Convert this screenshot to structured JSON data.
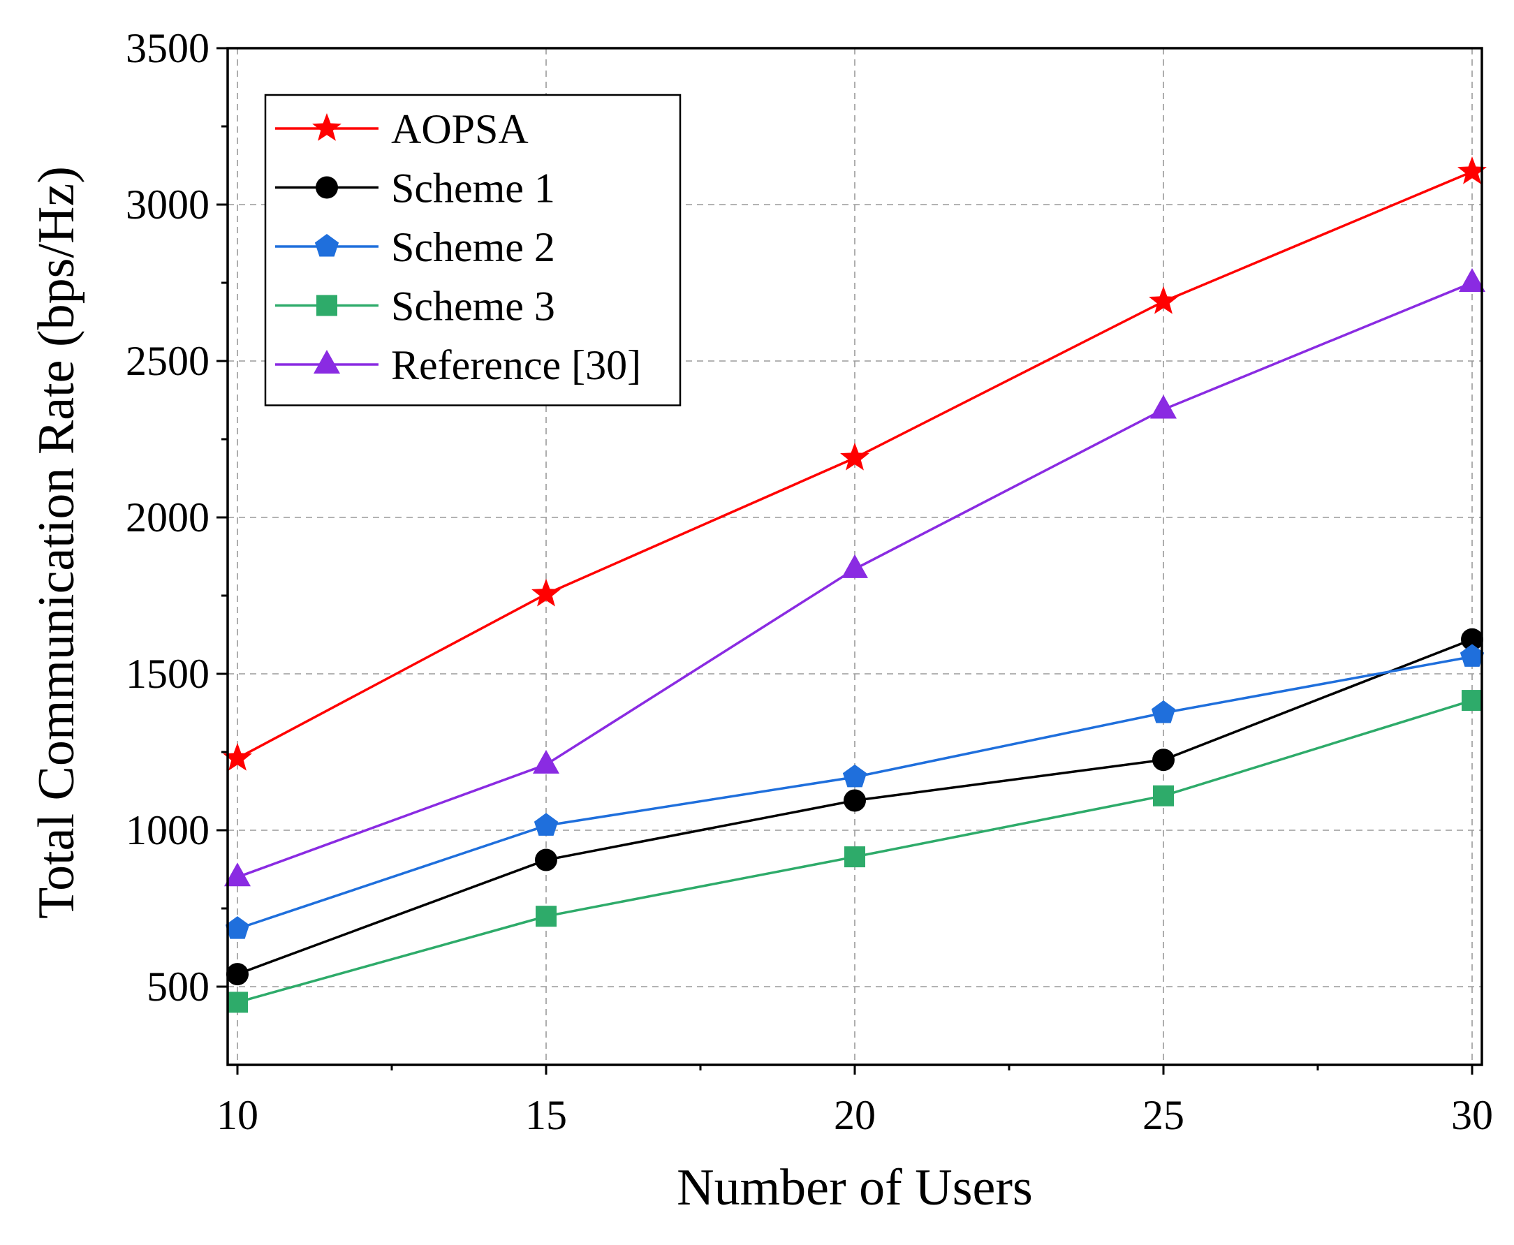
{
  "chart_data": {
    "type": "line",
    "title": "",
    "xlabel": "Number of Users",
    "ylabel": "Total Communication Rate (bps/Hz)",
    "x": [
      10,
      15,
      20,
      25,
      30
    ],
    "xticks": [
      "10",
      "15",
      "20",
      "25",
      "30"
    ],
    "yticks": [
      "500",
      "1000",
      "1500",
      "2000",
      "2500",
      "3000",
      "3500"
    ],
    "yticks_values": [
      500,
      1000,
      1500,
      2000,
      2500,
      3000,
      3500
    ],
    "xlim": [
      10,
      30
    ],
    "ylim": [
      250,
      3500
    ],
    "grid": true,
    "legend_position": "top-left",
    "series": [
      {
        "name": "AOPSA",
        "values": [
          1230,
          1755,
          2190,
          2690,
          3105
        ],
        "color": "#ff0000",
        "marker": "star"
      },
      {
        "name": "Scheme 1",
        "values": [
          540,
          905,
          1095,
          1225,
          1610
        ],
        "color": "#000000",
        "marker": "circle"
      },
      {
        "name": "Scheme 2",
        "values": [
          685,
          1015,
          1170,
          1375,
          1555
        ],
        "color": "#1f6fdc",
        "marker": "pentagon"
      },
      {
        "name": "Scheme 3",
        "values": [
          450,
          725,
          915,
          1110,
          1415
        ],
        "color": "#2eab6a",
        "marker": "square"
      },
      {
        "name": "Reference [30]",
        "values": [
          850,
          1210,
          1835,
          2345,
          2750
        ],
        "color": "#8a2be2",
        "marker": "triangle"
      }
    ]
  }
}
